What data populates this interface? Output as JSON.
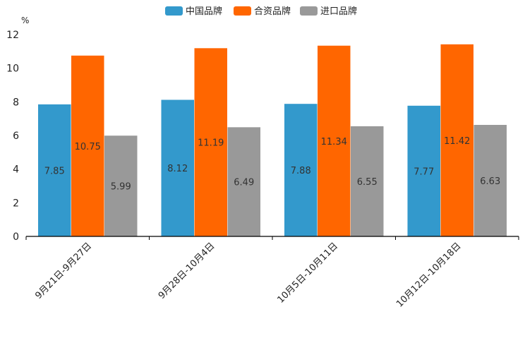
{
  "chart_data": {
    "type": "bar",
    "ylabel": "%",
    "ylim": [
      0,
      12
    ],
    "yticks": [
      "0",
      "2",
      "4",
      "6",
      "8",
      "10",
      "12"
    ],
    "legend_position": "top-center",
    "categories": [
      "9月21日-9月27日",
      "9月28日-10月4日",
      "10月5日-10月11日",
      "10月12日-10月18日"
    ],
    "series": [
      {
        "name": "中国品牌",
        "color": "#3399cc",
        "values": [
          7.85,
          8.12,
          7.88,
          7.77
        ],
        "labels": [
          "7.85",
          "8.12",
          "7.88",
          "7.77"
        ]
      },
      {
        "name": "合资品牌",
        "color": "#ff6600",
        "values": [
          10.75,
          11.19,
          11.34,
          11.42
        ],
        "labels": [
          "10.75",
          "11.19",
          "11.34",
          "11.42"
        ]
      },
      {
        "name": "进口品牌",
        "color": "#999999",
        "values": [
          5.99,
          6.49,
          6.55,
          6.63
        ],
        "labels": [
          "5.99",
          "6.49",
          "6.55",
          "6.63"
        ]
      }
    ]
  }
}
